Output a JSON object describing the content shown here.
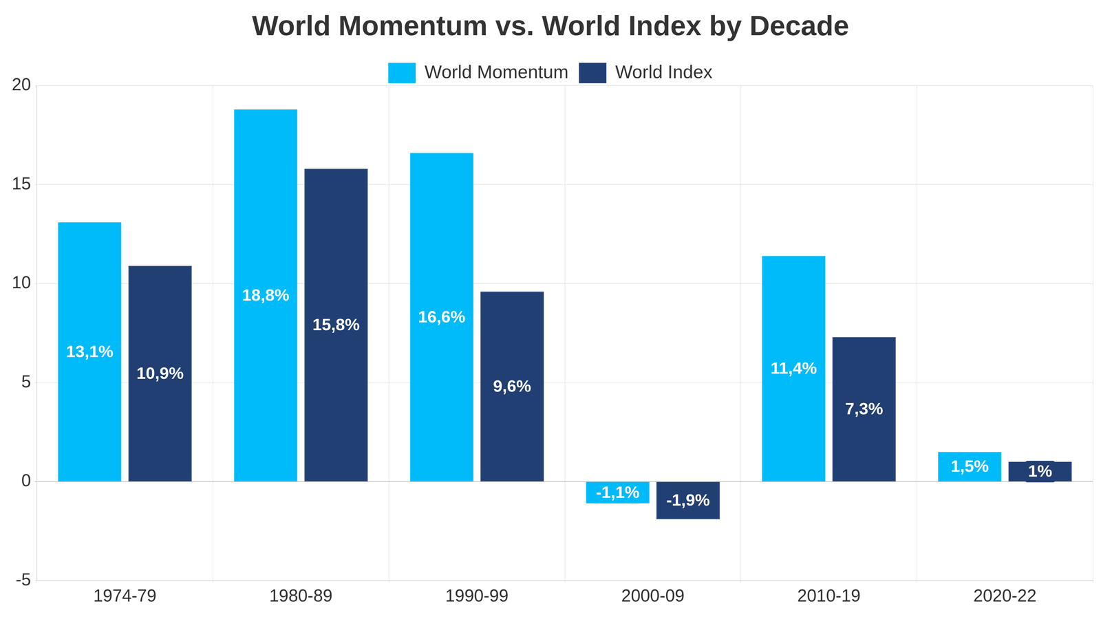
{
  "chart_data": {
    "type": "bar",
    "title": "World Momentum vs. World Index by Decade",
    "categories": [
      "1974-79",
      "1980-89",
      "1990-99",
      "2000-09",
      "2010-19",
      "2020-22"
    ],
    "series": [
      {
        "name": "World Momentum",
        "color": "#00bbf9",
        "values": [
          13.1,
          18.8,
          16.6,
          -1.1,
          11.4,
          1.5
        ],
        "value_labels": [
          "13,1%",
          "18,8%",
          "16,6%",
          "-1,1%",
          "11,4%",
          "1,5%"
        ]
      },
      {
        "name": "World Index",
        "color": "#213f73",
        "values": [
          10.9,
          15.8,
          9.6,
          -1.9,
          7.3,
          1
        ],
        "value_labels": [
          "10,9%",
          "15,8%",
          "9,6%",
          "-1,9%",
          "7,3%",
          "1%"
        ]
      }
    ],
    "ylim": [
      -5,
      20
    ],
    "yticks": [
      -5,
      0,
      5,
      10,
      15,
      20
    ],
    "grid": true,
    "legend": "top",
    "data_labels": true
  }
}
